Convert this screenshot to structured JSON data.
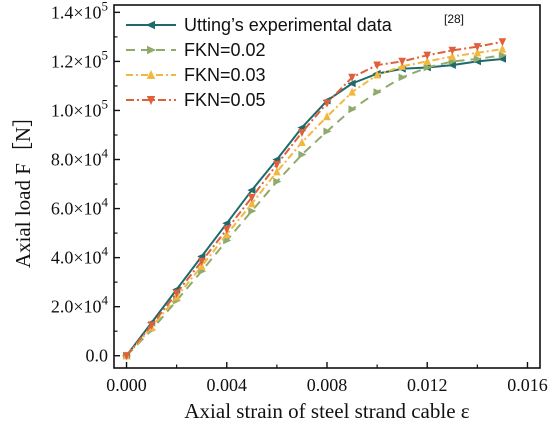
{
  "chart_data": {
    "type": "line",
    "xlabel": "Axial strain of steel strand cable ε",
    "ylabel": "Axial load  F［N］",
    "xlim": [
      -0.0005,
      0.0165
    ],
    "ylim": [
      -5000,
      143000
    ],
    "x_ticks": [
      {
        "value": 0.0,
        "label": "0.000"
      },
      {
        "value": 0.004,
        "label": "0.004"
      },
      {
        "value": 0.008,
        "label": "0.008"
      },
      {
        "value": 0.012,
        "label": "0.012"
      },
      {
        "value": 0.016,
        "label": "0.016"
      }
    ],
    "y_ticks": [
      {
        "value": 0,
        "label": "0.0"
      },
      {
        "value": 20000,
        "mant": "2.0×10",
        "exp": "4"
      },
      {
        "value": 40000,
        "mant": "4.0×10",
        "exp": "4"
      },
      {
        "value": 60000,
        "mant": "6.0×10",
        "exp": "4"
      },
      {
        "value": 80000,
        "mant": "8.0×10",
        "exp": "4"
      },
      {
        "value": 100000,
        "mant": "1.0×10",
        "exp": "5"
      },
      {
        "value": 120000,
        "mant": "1.2×10",
        "exp": "5"
      },
      {
        "value": 140000,
        "mant": "1.4×10",
        "exp": "5"
      }
    ],
    "grid": false,
    "legend_position": "top-left",
    "series": [
      {
        "name": "Utting’s experimental data",
        "legend_ref": "[28]",
        "color": "#1f6b6b",
        "dash": "",
        "marker": "triangle-left",
        "x": [
          0,
          0.001,
          0.002,
          0.003,
          0.004,
          0.005,
          0.006,
          0.007,
          0.008,
          0.009,
          0.01,
          0.011,
          0.012,
          0.013,
          0.014,
          0.015
        ],
        "y": [
          0,
          13500,
          27000,
          40500,
          54000,
          67500,
          80000,
          93000,
          104000,
          111000,
          115000,
          117000,
          117500,
          118500,
          120000,
          121000
        ]
      },
      {
        "name": "FKN=0.02",
        "color": "#8faa6a",
        "dash": "9,6",
        "marker": "triangle-right",
        "x": [
          0,
          0.001,
          0.002,
          0.003,
          0.004,
          0.005,
          0.006,
          0.007,
          0.008,
          0.009,
          0.01,
          0.011,
          0.012,
          0.013,
          0.014,
          0.015
        ],
        "y": [
          0,
          10500,
          22500,
          34500,
          47000,
          59000,
          71000,
          82000,
          91500,
          100500,
          107500,
          113500,
          117500,
          120000,
          121000,
          122500
        ]
      },
      {
        "name": "FKN=0.03",
        "color": "#f0b840",
        "dash": "7,3,2,3",
        "marker": "triangle-up",
        "x": [
          0,
          0.001,
          0.002,
          0.003,
          0.004,
          0.005,
          0.006,
          0.007,
          0.008,
          0.009,
          0.01,
          0.011,
          0.012,
          0.013,
          0.014,
          0.015
        ],
        "y": [
          0,
          11500,
          24000,
          36500,
          49500,
          62000,
          75000,
          87000,
          97500,
          107500,
          114500,
          118000,
          120000,
          122000,
          123500,
          125000
        ]
      },
      {
        "name": "FKN=0.05",
        "color": "#e0603c",
        "dash": "8,3,2,3",
        "marker": "triangle-down",
        "x": [
          0,
          0.001,
          0.002,
          0.003,
          0.004,
          0.005,
          0.006,
          0.007,
          0.008,
          0.009,
          0.01,
          0.011,
          0.012,
          0.013,
          0.014,
          0.015
        ],
        "y": [
          0,
          12500,
          25500,
          38500,
          51500,
          64500,
          78000,
          91000,
          103000,
          113500,
          118500,
          120000,
          122500,
          124500,
          126000,
          128000
        ]
      }
    ]
  }
}
